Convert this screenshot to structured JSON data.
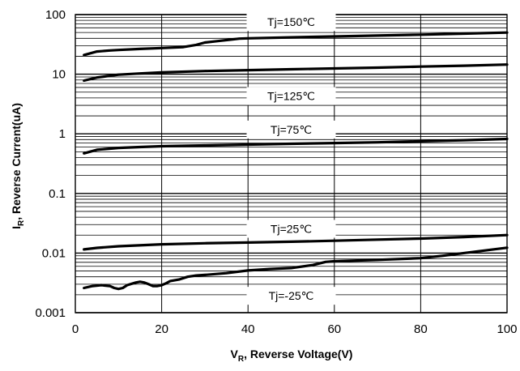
{
  "chart_data": {
    "type": "line",
    "xlabel": {
      "main": "V",
      "sub": "R",
      "rest": ", Reverse Voltage(V)"
    },
    "ylabel": {
      "main": "I",
      "sub": "R",
      "rest": ", Reverse Current(uA)"
    },
    "xlim": [
      0,
      100
    ],
    "ylim": [
      0.001,
      100
    ],
    "xscale": "linear",
    "yscale": "log",
    "grid": true,
    "x_ticks": [
      "0",
      "20",
      "40",
      "60",
      "80",
      "100"
    ],
    "y_ticks": [
      "0.001",
      "0.01",
      "0.1",
      "1",
      "10",
      "100"
    ],
    "series": [
      {
        "name": "Tj=150℃",
        "x": [
          2,
          5,
          8,
          10,
          15,
          20,
          25,
          28,
          30,
          33,
          36,
          38,
          40,
          50,
          60,
          70,
          80,
          90,
          100
        ],
        "y": [
          21,
          24,
          25,
          25.5,
          26.5,
          27.5,
          28.5,
          31,
          34,
          36,
          38,
          39.5,
          40,
          41.5,
          43,
          44.5,
          46,
          48,
          50
        ]
      },
      {
        "name": "Tj=125℃",
        "x": [
          2,
          5,
          8,
          10,
          15,
          20,
          30,
          40,
          50,
          60,
          70,
          80,
          90,
          100
        ],
        "y": [
          7.8,
          8.8,
          9.4,
          9.8,
          10.3,
          10.7,
          11.3,
          11.7,
          12.1,
          12.5,
          12.9,
          13.4,
          13.9,
          14.5
        ]
      },
      {
        "name": "Tj=75℃",
        "x": [
          2,
          5,
          10,
          15,
          20,
          30,
          40,
          50,
          60,
          70,
          80,
          90,
          100
        ],
        "y": [
          0.47,
          0.54,
          0.58,
          0.6,
          0.62,
          0.64,
          0.66,
          0.68,
          0.7,
          0.72,
          0.75,
          0.78,
          0.82
        ]
      },
      {
        "name": "Tj=25℃",
        "x": [
          2,
          5,
          10,
          20,
          30,
          40,
          50,
          60,
          70,
          80,
          90,
          100
        ],
        "y": [
          0.0115,
          0.0122,
          0.013,
          0.014,
          0.0146,
          0.015,
          0.0155,
          0.0161,
          0.0168,
          0.0175,
          0.0186,
          0.02
        ]
      },
      {
        "name": "Tj=-25℃",
        "x": [
          2,
          4,
          6,
          8,
          9,
          10,
          11,
          12,
          14,
          15,
          16,
          17,
          18,
          19,
          20,
          21,
          22,
          24,
          26,
          28,
          30,
          35,
          40,
          45,
          50,
          55,
          58,
          60,
          70,
          80,
          85,
          90,
          100
        ],
        "y": [
          0.0026,
          0.0028,
          0.0029,
          0.0028,
          0.0026,
          0.0025,
          0.0026,
          0.0029,
          0.0032,
          0.0033,
          0.0032,
          0.003,
          0.0028,
          0.0028,
          0.0029,
          0.0031,
          0.0034,
          0.0036,
          0.004,
          0.0042,
          0.0043,
          0.0046,
          0.0051,
          0.0054,
          0.0056,
          0.0063,
          0.0071,
          0.0073,
          0.0077,
          0.0082,
          0.009,
          0.01,
          0.0123
        ]
      }
    ],
    "colors": {
      "curve": "#000000",
      "grid": "#000000",
      "background": "#ffffff"
    }
  }
}
